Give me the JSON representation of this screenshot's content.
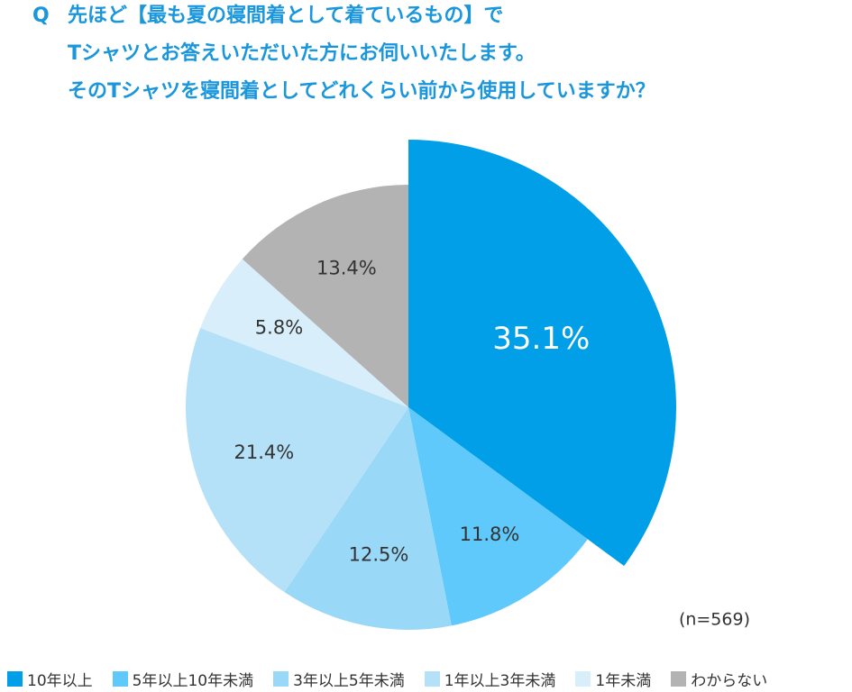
{
  "chart_data": {
    "type": "pie",
    "question_mark": "Q",
    "title": [
      "先ほど【最も夏の寝間着として着ているもの】で",
      "Tシャツとお答えいただいた方にお伺いいたします。",
      "そのTシャツを寝間着としてどれくらい前から使用していますか？"
    ],
    "categories": [
      "10年以上",
      "5年以上10年未満",
      "3年以上5年未満",
      "1年以上3年未満",
      "1年未満",
      "わからない"
    ],
    "values": [
      35.1,
      11.8,
      12.5,
      21.4,
      5.8,
      13.4
    ],
    "value_labels": [
      "35.1%",
      "11.8%",
      "12.5%",
      "21.4%",
      "5.8%",
      "13.4%"
    ],
    "colors": [
      "#009fe8",
      "#5ec9fa",
      "#9ad8f8",
      "#b4e1f7",
      "#d8effb",
      "#b3b3b3"
    ],
    "note": "(n=569)",
    "legend": "bottom"
  }
}
